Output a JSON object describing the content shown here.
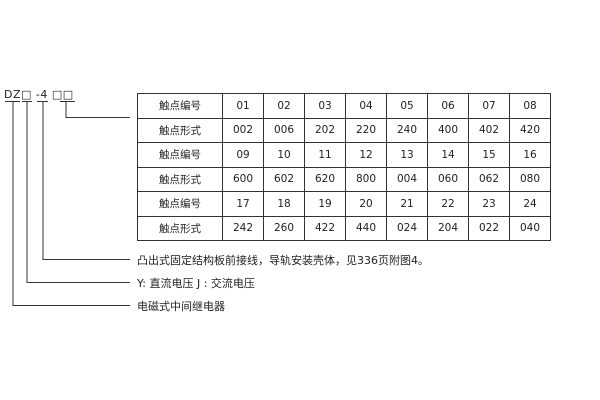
{
  "model_code": "DZ□ -4 □□",
  "table": {
    "rows": [
      {
        "label": "触点编号",
        "values": [
          "01",
          "02",
          "03",
          "04",
          "05",
          "06",
          "07",
          "08"
        ]
      },
      {
        "label": "触点形式",
        "values": [
          "002",
          "006",
          "202",
          "220",
          "240",
          "400",
          "402",
          "420"
        ]
      },
      {
        "label": "触点编号",
        "values": [
          "09",
          "10",
          "11",
          "12",
          "13",
          "14",
          "15",
          "16"
        ]
      },
      {
        "label": "触点形式",
        "values": [
          "600",
          "602",
          "620",
          "800",
          "004",
          "060",
          "062",
          "080"
        ]
      },
      {
        "label": "触点编号",
        "values": [
          "17",
          "18",
          "19",
          "20",
          "21",
          "22",
          "23",
          "24"
        ]
      },
      {
        "label": "触点形式",
        "values": [
          "242",
          "260",
          "422",
          "440",
          "024",
          "204",
          "022",
          "040"
        ]
      }
    ]
  },
  "descriptions": [
    "凸出式固定结构板前接线，导轨安装壳体，见336页附图4。",
    "Y: 直流电压   J : 交流电压",
    "电磁式中间继电器"
  ]
}
